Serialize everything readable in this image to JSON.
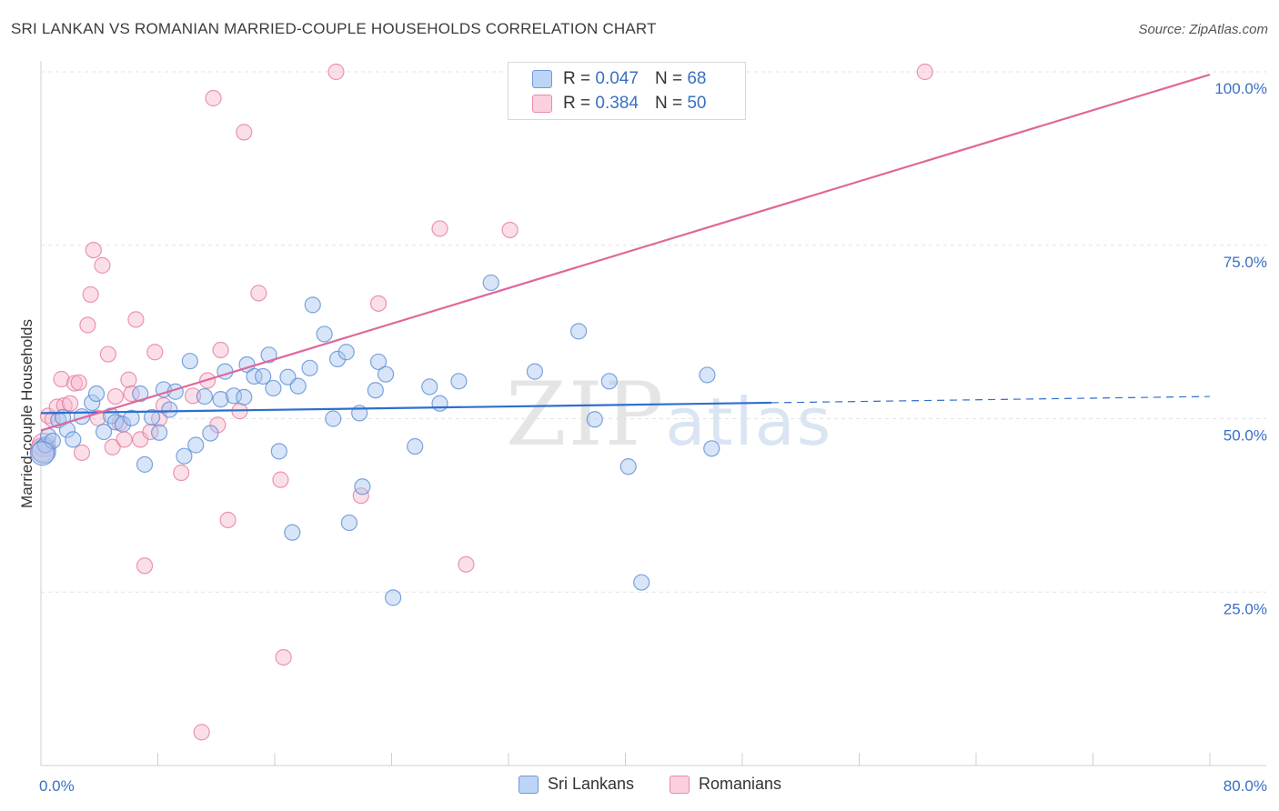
{
  "header": {
    "title": "SRI LANKAN VS ROMANIAN MARRIED-COUPLE HOUSEHOLDS CORRELATION CHART",
    "source": "Source: ZipAtlas.com"
  },
  "watermark": {
    "zip": "ZIP",
    "atlas": "atlas"
  },
  "legend_top": {
    "rows": [
      {
        "r_label": "R = ",
        "r_value": "0.047",
        "n_label": "N = ",
        "n_value": "68",
        "color": "#a8c6f0"
      },
      {
        "r_label": "R = ",
        "r_value": "0.384",
        "n_label": "N = ",
        "n_value": "50",
        "color": "#f7b9cb"
      }
    ]
  },
  "legend_bottom": {
    "items": [
      {
        "label": "Sri Lankans",
        "color": "#a8c6f0"
      },
      {
        "label": "Romanians",
        "color": "#f7b9cb"
      }
    ]
  },
  "chart_data": {
    "type": "scatter",
    "title": "SRI LANKAN VS ROMANIAN MARRIED-COUPLE HOUSEHOLDS CORRELATION CHART",
    "xlabel": "",
    "ylabel": "Married-couple Households",
    "xlim": [
      0,
      80
    ],
    "ylim": [
      0,
      102
    ],
    "x_tick_labels": [
      "0.0%",
      "80.0%"
    ],
    "y_tick_labels": [
      "25.0%",
      "50.0%",
      "75.0%",
      "100.0%"
    ],
    "y_ticks": [
      25,
      50,
      75,
      100
    ],
    "grid": true,
    "legend_placement": "top-center",
    "series": [
      {
        "name": "Sri Lankans",
        "color": "#5b8fd6",
        "fill": "#a8c6f0",
        "trend": {
          "x": [
            0,
            50
          ],
          "y": [
            50.8,
            52.3
          ],
          "dashed_to": [
            80,
            53.2
          ],
          "color": "#2f6fcc"
        },
        "points": [
          [
            0.2,
            45.3
          ],
          [
            0.3,
            46.2
          ],
          [
            0.5,
            47.5
          ],
          [
            0.8,
            46.8
          ],
          [
            1.2,
            49.8
          ],
          [
            1.5,
            50.2
          ],
          [
            1.8,
            48.4
          ],
          [
            2.2,
            47.0
          ],
          [
            2.8,
            50.3
          ],
          [
            3.5,
            52.3
          ],
          [
            3.8,
            53.6
          ],
          [
            4.3,
            48.1
          ],
          [
            4.8,
            50.4
          ],
          [
            5.1,
            49.5
          ],
          [
            5.6,
            49.2
          ],
          [
            6.2,
            50.1
          ],
          [
            6.8,
            53.6
          ],
          [
            7.1,
            43.4
          ],
          [
            7.6,
            50.2
          ],
          [
            8.1,
            48.0
          ],
          [
            8.4,
            54.2
          ],
          [
            8.8,
            51.3
          ],
          [
            9.2,
            53.9
          ],
          [
            9.8,
            44.6
          ],
          [
            10.2,
            58.3
          ],
          [
            10.6,
            46.2
          ],
          [
            11.2,
            53.2
          ],
          [
            11.6,
            47.9
          ],
          [
            12.3,
            52.8
          ],
          [
            12.6,
            56.8
          ],
          [
            13.2,
            53.3
          ],
          [
            13.9,
            53.1
          ],
          [
            14.1,
            57.8
          ],
          [
            14.6,
            56.1
          ],
          [
            15.2,
            56.1
          ],
          [
            15.6,
            59.2
          ],
          [
            15.9,
            54.4
          ],
          [
            16.3,
            45.3
          ],
          [
            16.9,
            56.0
          ],
          [
            17.2,
            33.6
          ],
          [
            17.6,
            54.7
          ],
          [
            18.4,
            57.3
          ],
          [
            18.6,
            66.4
          ],
          [
            19.4,
            62.2
          ],
          [
            20.0,
            50.0
          ],
          [
            20.3,
            58.6
          ],
          [
            20.9,
            59.6
          ],
          [
            21.1,
            35.0
          ],
          [
            21.8,
            50.8
          ],
          [
            22.0,
            40.2
          ],
          [
            22.9,
            54.1
          ],
          [
            23.1,
            58.2
          ],
          [
            23.6,
            56.4
          ],
          [
            24.1,
            24.2
          ],
          [
            25.6,
            46.0
          ],
          [
            26.6,
            54.6
          ],
          [
            27.3,
            52.2
          ],
          [
            28.6,
            55.4
          ],
          [
            30.8,
            69.6
          ],
          [
            33.8,
            56.8
          ],
          [
            36.8,
            62.6
          ],
          [
            37.9,
            49.9
          ],
          [
            38.9,
            55.4
          ],
          [
            40.2,
            43.1
          ],
          [
            41.1,
            26.4
          ],
          [
            45.6,
            56.3
          ],
          [
            45.9,
            45.7
          ],
          [
            0.1,
            45.0
          ]
        ]
      },
      {
        "name": "Romanians",
        "color": "#e67ca0",
        "fill": "#f7b9cb",
        "trend": {
          "x": [
            0,
            80
          ],
          "y": [
            48.3,
            99.6
          ],
          "color": "#e0679a"
        },
        "points": [
          [
            0.2,
            46.2
          ],
          [
            0.5,
            50.4
          ],
          [
            0.8,
            49.9
          ],
          [
            1.1,
            51.7
          ],
          [
            1.4,
            55.7
          ],
          [
            1.6,
            51.9
          ],
          [
            2.0,
            52.2
          ],
          [
            2.3,
            55.1
          ],
          [
            2.6,
            55.2
          ],
          [
            2.8,
            45.1
          ],
          [
            3.2,
            63.5
          ],
          [
            3.4,
            67.9
          ],
          [
            3.6,
            74.3
          ],
          [
            3.9,
            50.1
          ],
          [
            4.2,
            72.1
          ],
          [
            4.6,
            59.3
          ],
          [
            4.9,
            45.9
          ],
          [
            5.1,
            53.2
          ],
          [
            5.4,
            49.4
          ],
          [
            5.7,
            47.0
          ],
          [
            6.0,
            55.6
          ],
          [
            6.2,
            53.6
          ],
          [
            6.5,
            64.3
          ],
          [
            6.8,
            47.0
          ],
          [
            7.1,
            28.8
          ],
          [
            7.5,
            48.1
          ],
          [
            7.8,
            59.6
          ],
          [
            8.1,
            50.0
          ],
          [
            8.4,
            51.9
          ],
          [
            9.6,
            42.2
          ],
          [
            10.4,
            53.3
          ],
          [
            11.0,
            4.8
          ],
          [
            11.4,
            55.5
          ],
          [
            11.8,
            96.2
          ],
          [
            12.1,
            49.1
          ],
          [
            12.3,
            59.9
          ],
          [
            12.8,
            35.4
          ],
          [
            13.6,
            51.1
          ],
          [
            13.9,
            91.3
          ],
          [
            14.9,
            68.1
          ],
          [
            16.4,
            41.2
          ],
          [
            16.6,
            15.6
          ],
          [
            20.2,
            100.0
          ],
          [
            21.9,
            38.9
          ],
          [
            23.1,
            66.6
          ],
          [
            27.3,
            77.4
          ],
          [
            29.1,
            29.0
          ],
          [
            32.1,
            77.2
          ],
          [
            0.1,
            45.5
          ],
          [
            60.5,
            100.0
          ]
        ]
      }
    ]
  }
}
